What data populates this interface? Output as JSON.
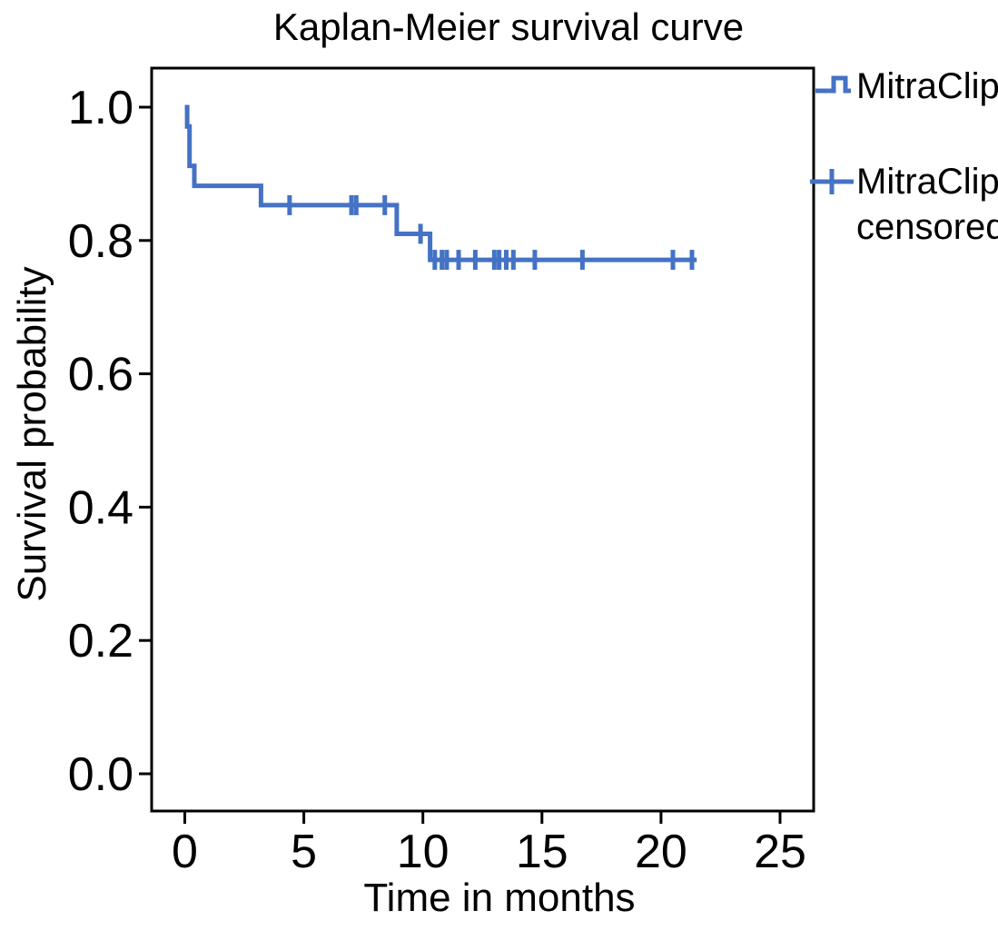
{
  "chart_data": {
    "type": "line",
    "subtype": "kaplan-meier-step",
    "title": "Kaplan-Meier survival curve",
    "xlabel": "Time in months",
    "ylabel": "Survival probability",
    "xlim": [
      0,
      25
    ],
    "ylim": [
      0.0,
      1.0
    ],
    "x_ticks": [
      0,
      5,
      10,
      15,
      20,
      25
    ],
    "y_ticks": [
      0.0,
      0.2,
      0.4,
      0.6,
      0.8,
      1.0
    ],
    "y_tick_labels": [
      "0.0",
      "0.2",
      "0.4",
      "0.6",
      "0.8",
      "1.0"
    ],
    "grid": false,
    "colors": {
      "curve": "#4472C4",
      "axis": "#000000",
      "background": "#FFFFFF"
    },
    "series": [
      {
        "name": "MitraClip",
        "color": "#4472C4",
        "steps": [
          [
            0.0,
            1.0
          ],
          [
            0.1,
            0.971
          ],
          [
            0.2,
            0.912
          ],
          [
            0.4,
            0.882
          ],
          [
            3.2,
            0.853
          ],
          [
            8.9,
            0.81
          ],
          [
            10.3,
            0.771
          ]
        ],
        "end_time": 21.5
      }
    ],
    "censored": {
      "name": "MitraClip censored",
      "color": "#4472C4",
      "points": [
        [
          4.4,
          0.853
        ],
        [
          7.0,
          0.853
        ],
        [
          7.2,
          0.853
        ],
        [
          8.4,
          0.853
        ],
        [
          9.9,
          0.81
        ],
        [
          10.5,
          0.771
        ],
        [
          10.8,
          0.771
        ],
        [
          11.0,
          0.771
        ],
        [
          11.5,
          0.771
        ],
        [
          12.2,
          0.771
        ],
        [
          13.0,
          0.771
        ],
        [
          13.2,
          0.771
        ],
        [
          13.5,
          0.771
        ],
        [
          13.8,
          0.771
        ],
        [
          14.7,
          0.771
        ],
        [
          16.7,
          0.771
        ],
        [
          20.5,
          0.771
        ],
        [
          21.3,
          0.771
        ]
      ]
    },
    "legend": {
      "position": "right",
      "entries": [
        {
          "label": "MitraClip",
          "label_lines": [
            "MitraClip"
          ],
          "marker": "step-line"
        },
        {
          "label": "MitraClip censored",
          "label_lines": [
            "MitraClip",
            "censored"
          ],
          "marker": "plus"
        }
      ]
    }
  }
}
